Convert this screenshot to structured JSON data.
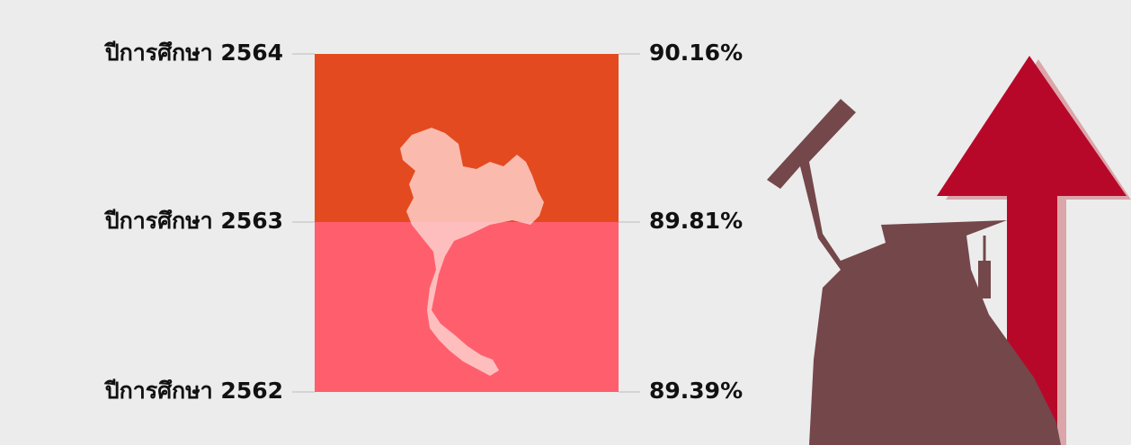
{
  "rows": [
    {
      "label": "ปีการศึกษา 2564",
      "value": "90.16%"
    },
    {
      "label": "ปีการศึกษา 2563",
      "value": "89.81%"
    },
    {
      "label": "ปีการศึกษา 2562",
      "value": "89.39%"
    }
  ]
}
